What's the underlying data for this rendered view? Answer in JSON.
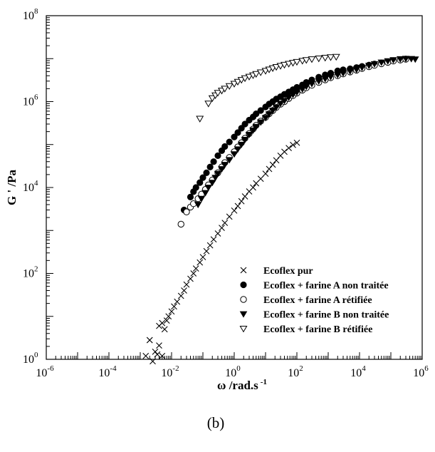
{
  "chart_data": {
    "type": "scatter",
    "xlabel": "ω /rad.s",
    "xlabel_exponent": "-1",
    "ylabel": "G ' /Pa",
    "x_scale": "log",
    "y_scale": "log",
    "xlim": [
      1e-06,
      1000000.0
    ],
    "ylim": [
      1,
      100000000.0
    ],
    "x_ticks": [
      {
        "base": "10",
        "exp": "-6"
      },
      {
        "base": "10",
        "exp": "-4"
      },
      {
        "base": "10",
        "exp": "-2"
      },
      {
        "base": "10",
        "exp": "0"
      },
      {
        "base": "10",
        "exp": "2"
      },
      {
        "base": "10",
        "exp": "4"
      },
      {
        "base": "10",
        "exp": "6"
      }
    ],
    "y_ticks": [
      {
        "base": "10",
        "exp": "0"
      },
      {
        "base": "10",
        "exp": "2"
      },
      {
        "base": "10",
        "exp": "4"
      },
      {
        "base": "10",
        "exp": "6"
      },
      {
        "base": "10",
        "exp": "8"
      }
    ],
    "grid": false,
    "legend_position": "bottom-right",
    "panel_label": "(b)",
    "series": [
      {
        "name": "Ecoflex pur",
        "marker": "x",
        "points": [
          [
            0.0015,
            1.2
          ],
          [
            0.002,
            2.8
          ],
          [
            0.0025,
            0.9
          ],
          [
            0.003,
            1.5
          ],
          [
            0.0035,
            1.3
          ],
          [
            0.004,
            2.1
          ],
          [
            0.005,
            1.2
          ],
          [
            0.004,
            6
          ],
          [
            0.005,
            7
          ],
          [
            0.006,
            5
          ],
          [
            0.007,
            8
          ],
          [
            0.008,
            10
          ],
          [
            0.01,
            13
          ],
          [
            0.012,
            17
          ],
          [
            0.015,
            22
          ],
          [
            0.02,
            30
          ],
          [
            0.025,
            40
          ],
          [
            0.03,
            55
          ],
          [
            0.04,
            75
          ],
          [
            0.05,
            100
          ],
          [
            0.06,
            130
          ],
          [
            0.08,
            180
          ],
          [
            0.1,
            240
          ],
          [
            0.13,
            330
          ],
          [
            0.17,
            450
          ],
          [
            0.22,
            620
          ],
          [
            0.3,
            850
          ],
          [
            0.4,
            1150
          ],
          [
            0.5,
            1500
          ],
          [
            0.7,
            2100
          ],
          [
            1,
            2900
          ],
          [
            1.3,
            3700
          ],
          [
            1.7,
            4800
          ],
          [
            2.2,
            6200
          ],
          [
            3,
            8100
          ],
          [
            4,
            10000
          ],
          [
            5,
            12500
          ],
          [
            7,
            16000
          ],
          [
            10,
            21000
          ],
          [
            13,
            27000
          ],
          [
            17,
            34000
          ],
          [
            22,
            43000
          ],
          [
            30,
            55000
          ],
          [
            40,
            68000
          ],
          [
            55,
            83000
          ],
          [
            75,
            98000
          ],
          [
            100,
            110000
          ]
        ]
      },
      {
        "name": "Ecoflex + farine A non traitée",
        "marker": "filled-circle",
        "points": [
          [
            0.025,
            3000
          ],
          [
            0.04,
            6000
          ],
          [
            0.05,
            8000
          ],
          [
            0.06,
            10000
          ],
          [
            0.08,
            13000
          ],
          [
            0.1,
            17000
          ],
          [
            0.13,
            22000
          ],
          [
            0.17,
            30000
          ],
          [
            0.22,
            40000
          ],
          [
            0.3,
            55000
          ],
          [
            0.4,
            72000
          ],
          [
            0.5,
            90000
          ],
          [
            0.7,
            115000
          ],
          [
            1,
            150000
          ],
          [
            1.3,
            190000
          ],
          [
            1.7,
            240000
          ],
          [
            2.2,
            300000
          ],
          [
            3,
            370000
          ],
          [
            4,
            440000
          ],
          [
            5,
            520000
          ],
          [
            7,
            620000
          ],
          [
            10,
            750000
          ],
          [
            13,
            880000
          ],
          [
            17,
            1000000
          ],
          [
            22,
            1150000
          ],
          [
            30,
            1300000
          ],
          [
            40,
            1480000
          ],
          [
            55,
            1680000
          ],
          [
            75,
            1900000
          ],
          [
            100,
            2150000
          ],
          [
            150,
            2450000
          ],
          [
            200,
            2800000
          ],
          [
            300,
            3200000
          ],
          [
            500,
            3700000
          ],
          [
            800,
            4200000
          ],
          [
            1200,
            4600000
          ],
          [
            2000,
            5200000
          ],
          [
            3000,
            5500000
          ],
          [
            5000,
            5800000
          ],
          [
            8000,
            6200000
          ],
          [
            12000,
            6600000
          ],
          [
            20000,
            7100000
          ],
          [
            30000,
            7500000
          ],
          [
            50000,
            8000000
          ],
          [
            80000,
            8500000
          ],
          [
            120000,
            9000000
          ],
          [
            200000,
            9500000
          ],
          [
            300000,
            9800000
          ]
        ]
      },
      {
        "name": "Ecoflex + farine A rétifiée",
        "marker": "open-circle",
        "points": [
          [
            0.02,
            1400
          ],
          [
            0.03,
            2700
          ],
          [
            0.04,
            3500
          ],
          [
            0.05,
            4200
          ],
          [
            0.07,
            5500
          ],
          [
            0.09,
            7000
          ],
          [
            0.12,
            9000
          ],
          [
            0.15,
            11500
          ],
          [
            0.2,
            15000
          ],
          [
            0.3,
            22000
          ],
          [
            0.4,
            30000
          ],
          [
            0.5,
            38000
          ],
          [
            0.7,
            50000
          ],
          [
            1,
            68000
          ],
          [
            1.3,
            88000
          ],
          [
            1.7,
            110000
          ],
          [
            2.2,
            140000
          ],
          [
            3,
            180000
          ],
          [
            4,
            230000
          ],
          [
            5,
            280000
          ],
          [
            7,
            350000
          ],
          [
            10,
            430000
          ],
          [
            13,
            520000
          ],
          [
            17,
            620000
          ],
          [
            22,
            730000
          ],
          [
            30,
            870000
          ],
          [
            40,
            1000000
          ],
          [
            55,
            1180000
          ],
          [
            75,
            1380000
          ],
          [
            100,
            1580000
          ],
          [
            150,
            1850000
          ],
          [
            200,
            2100000
          ],
          [
            300,
            2400000
          ],
          [
            500,
            2800000
          ],
          [
            800,
            3200000
          ],
          [
            1200,
            3600000
          ],
          [
            2000,
            4000000
          ],
          [
            3000,
            4400000
          ],
          [
            5000,
            4900000
          ],
          [
            8000,
            5400000
          ],
          [
            12000,
            5900000
          ],
          [
            20000,
            6500000
          ],
          [
            30000,
            7000000
          ],
          [
            50000,
            7600000
          ],
          [
            80000,
            8200000
          ],
          [
            120000,
            8800000
          ],
          [
            200000,
            9300000
          ],
          [
            300000,
            9700000
          ]
        ]
      },
      {
        "name": "Ecoflex + farine B non traitée",
        "marker": "filled-triangle-down",
        "points": [
          [
            0.07,
            4000
          ],
          [
            0.09,
            5500
          ],
          [
            0.12,
            7500
          ],
          [
            0.15,
            10000
          ],
          [
            0.2,
            13000
          ],
          [
            0.25,
            17000
          ],
          [
            0.3,
            21000
          ],
          [
            0.4,
            27000
          ],
          [
            0.5,
            34000
          ],
          [
            0.7,
            44000
          ],
          [
            1,
            60000
          ],
          [
            1.3,
            78000
          ],
          [
            1.7,
            100000
          ],
          [
            2.2,
            130000
          ],
          [
            3,
            170000
          ],
          [
            4,
            215000
          ],
          [
            5,
            260000
          ],
          [
            7,
            330000
          ],
          [
            10,
            420000
          ],
          [
            13,
            510000
          ],
          [
            17,
            620000
          ],
          [
            22,
            740000
          ],
          [
            30,
            900000
          ],
          [
            40,
            1050000
          ],
          [
            55,
            1250000
          ],
          [
            75,
            1450000
          ],
          [
            100,
            1650000
          ],
          [
            150,
            1950000
          ],
          [
            200,
            2250000
          ],
          [
            300,
            2600000
          ],
          [
            500,
            3000000
          ],
          [
            800,
            3400000
          ],
          [
            1200,
            3800000
          ],
          [
            2000,
            4200000
          ],
          [
            3000,
            4600000
          ],
          [
            5000,
            5100000
          ],
          [
            8000,
            5600000
          ],
          [
            12000,
            6200000
          ],
          [
            20000,
            6900000
          ],
          [
            30000,
            7500000
          ],
          [
            50000,
            8200000
          ],
          [
            80000,
            8800000
          ],
          [
            120000,
            9300000
          ],
          [
            200000,
            9800000
          ],
          [
            300000,
            10000000
          ],
          [
            450000,
            9900000
          ],
          [
            600000,
            9700000
          ]
        ]
      },
      {
        "name": "Ecoflex + farine B rétifiée",
        "marker": "open-triangle-down",
        "points": [
          [
            0.08,
            400000
          ],
          [
            0.15,
            900000
          ],
          [
            0.2,
            1200000
          ],
          [
            0.25,
            1400000
          ],
          [
            0.3,
            1600000
          ],
          [
            0.4,
            1800000
          ],
          [
            0.5,
            2000000
          ],
          [
            0.7,
            2300000
          ],
          [
            1,
            2600000
          ],
          [
            1.3,
            2900000
          ],
          [
            1.7,
            3200000
          ],
          [
            2.2,
            3500000
          ],
          [
            3,
            3800000
          ],
          [
            4,
            4100000
          ],
          [
            5,
            4400000
          ],
          [
            7,
            4800000
          ],
          [
            10,
            5200000
          ],
          [
            13,
            5600000
          ],
          [
            17,
            6000000
          ],
          [
            22,
            6400000
          ],
          [
            30,
            6800000
          ],
          [
            40,
            7200000
          ],
          [
            55,
            7600000
          ],
          [
            75,
            8000000
          ],
          [
            100,
            8400000
          ],
          [
            150,
            8900000
          ],
          [
            200,
            9300000
          ],
          [
            300,
            9700000
          ],
          [
            500,
            10100000
          ],
          [
            800,
            10500000
          ],
          [
            1200,
            10800000
          ],
          [
            1800,
            11000000
          ]
        ]
      }
    ]
  }
}
